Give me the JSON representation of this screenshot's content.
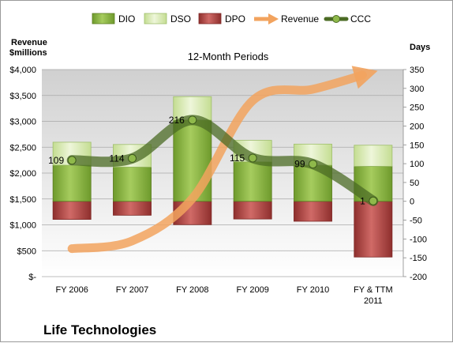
{
  "chart_data": {
    "type": "bar",
    "title": "12-Month Periods",
    "company": "Life Technologies",
    "left_axis_label": [
      "Revenue",
      "$millions"
    ],
    "right_axis_label": "Days",
    "categories": [
      "FY 2006",
      "FY 2007",
      "FY 2008",
      "FY 2009",
      "FY 2010",
      "FY & TTM 2011"
    ],
    "left_ticks": [
      "$-",
      "$500",
      "$1,000",
      "$1,500",
      "$2,000",
      "$2,500",
      "$3,000",
      "$3,500",
      "$4,000"
    ],
    "left_ylim": [
      0,
      4000
    ],
    "right_ticks": [
      "-200",
      "-150",
      "-100",
      "-50",
      "0",
      "50",
      "100",
      "150",
      "200",
      "250",
      "300",
      "350"
    ],
    "right_ylim": [
      -200,
      350
    ],
    "grid": "horizontal",
    "legend_position": "top",
    "legend": [
      {
        "name": "DIO",
        "marker": "bar",
        "color": "#8fb94b"
      },
      {
        "name": "DSO",
        "marker": "bar",
        "color": "#d9ebb5"
      },
      {
        "name": "DPO",
        "marker": "bar",
        "color": "#b34a48"
      },
      {
        "name": "Revenue",
        "marker": "arrow-line",
        "color": "#f2a35e"
      },
      {
        "name": "CCC",
        "marker": "line-dot",
        "color": "#4b6b24"
      }
    ],
    "stacked_bars": {
      "axis": "right",
      "DIO": [
        96,
        91,
        216,
        105,
        96,
        93
      ],
      "DSO": [
        61,
        60,
        62,
        57,
        56,
        56
      ],
      "DPO": [
        -48,
        -37,
        -62,
        -47,
        -53,
        -148
      ]
    },
    "series": [
      {
        "name": "Revenue",
        "axis": "left",
        "values": [
          540,
          690,
          1510,
          3400,
          3620,
          3950
        ]
      },
      {
        "name": "CCC",
        "axis": "right",
        "values": [
          109,
          114,
          216,
          115,
          99,
          1
        ]
      }
    ],
    "ccc_labels": [
      "109",
      "114",
      "216",
      "115",
      "99",
      "1"
    ]
  }
}
